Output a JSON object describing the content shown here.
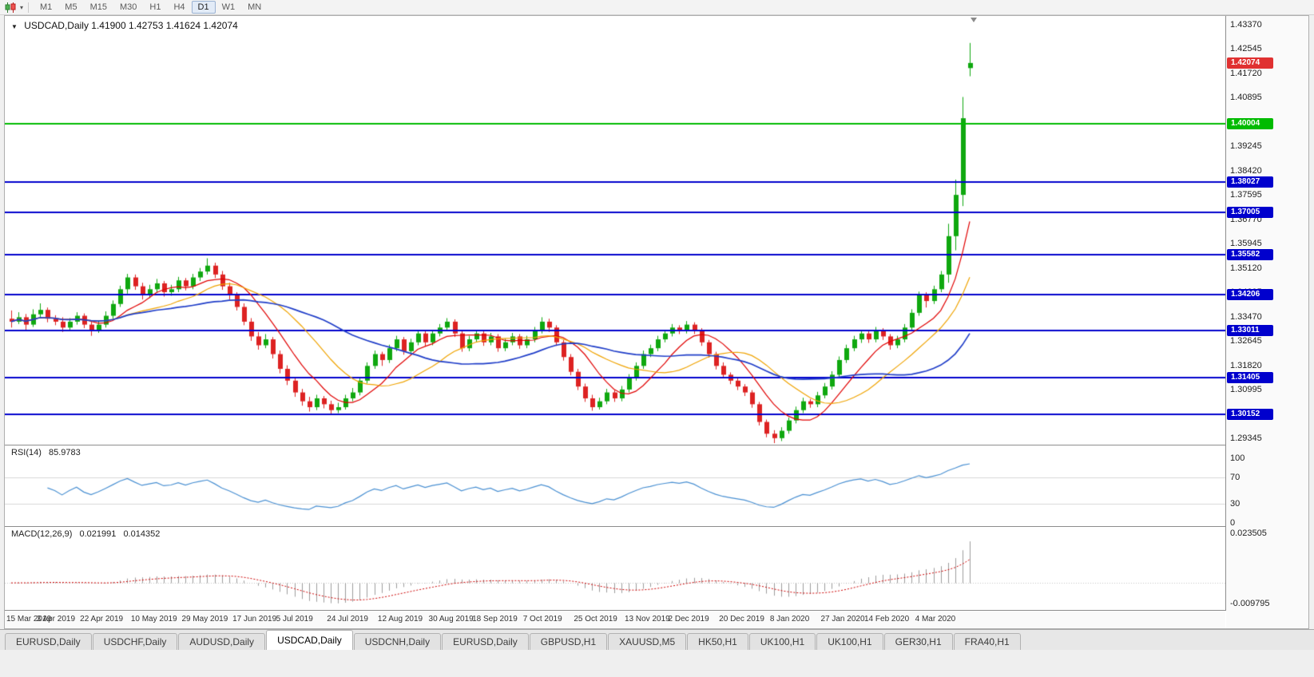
{
  "window": {
    "bg_color": "#f0f0f0"
  },
  "toolbar": {
    "chart_icon": "candlestick-chart-icon",
    "dropdown_caret": "▾",
    "timeframes": [
      {
        "label": "M1",
        "active": false
      },
      {
        "label": "M5",
        "active": false
      },
      {
        "label": "M15",
        "active": false
      },
      {
        "label": "M30",
        "active": false
      },
      {
        "label": "H1",
        "active": false
      },
      {
        "label": "H4",
        "active": false
      },
      {
        "label": "D1",
        "active": true
      },
      {
        "label": "W1",
        "active": false
      },
      {
        "label": "MN",
        "active": false
      }
    ]
  },
  "chart_data": {
    "type": "candlestick",
    "symbol": "USDCAD",
    "period": "Daily",
    "title": "USDCAD,Daily 1.41900 1.42753 1.41624 1.42074",
    "ohlc": {
      "open": "1.41900",
      "high": "1.42753",
      "low": "1.41624",
      "close": "1.42074"
    },
    "dropdown_caret": "▼",
    "bull_color": "#0fa80f",
    "bear_color": "#dd2222",
    "x_labels": [
      "15 Mar 2019",
      "3 Apr 2019",
      "22 Apr 2019",
      "10 May 2019",
      "29 May 2019",
      "17 Jun 2019",
      "5 Jul 2019",
      "24 Jul 2019",
      "12 Aug 2019",
      "30 Aug 2019",
      "18 Sep 2019",
      "7 Oct 2019",
      "25 Oct 2019",
      "13 Nov 2019",
      "2 Dec 2019",
      "20 Dec 2019",
      "8 Jan 2020",
      "27 Jan 2020",
      "14 Feb 2020",
      "4 Mar 2020"
    ],
    "y_axis": {
      "top": 1.4337,
      "bottom": 1.29345,
      "labels": [
        "1.43370",
        "1.42545",
        "1.41720",
        "1.40895",
        "1.40070",
        "1.39245",
        "1.38420",
        "1.37595",
        "1.36770",
        "1.35945",
        "1.35120",
        "1.34295",
        "1.33470",
        "1.32645",
        "1.31820",
        "1.30995",
        "1.30170",
        "1.29345"
      ]
    },
    "candles": [
      [
        1.334,
        1.3368,
        1.331,
        1.333
      ],
      [
        1.333,
        1.3362,
        1.3322,
        1.3345
      ],
      [
        1.3345,
        1.3356,
        1.3298,
        1.332
      ],
      [
        1.332,
        1.3372,
        1.3312,
        1.3355
      ],
      [
        1.3355,
        1.3392,
        1.3342,
        1.337
      ],
      [
        1.337,
        1.3378,
        1.3328,
        1.334
      ],
      [
        1.334,
        1.3352,
        1.3318,
        1.333
      ],
      [
        1.333,
        1.3345,
        1.3295,
        1.331
      ],
      [
        1.331,
        1.3342,
        1.33,
        1.333
      ],
      [
        1.333,
        1.3362,
        1.332,
        1.335
      ],
      [
        1.335,
        1.3358,
        1.3308,
        1.332
      ],
      [
        1.332,
        1.3332,
        1.3282,
        1.33
      ],
      [
        1.33,
        1.3334,
        1.3292,
        1.332
      ],
      [
        1.332,
        1.3365,
        1.331,
        1.335
      ],
      [
        1.335,
        1.3402,
        1.334,
        1.339
      ],
      [
        1.339,
        1.3452,
        1.338,
        1.344
      ],
      [
        1.344,
        1.3492,
        1.3425,
        1.348
      ],
      [
        1.348,
        1.349,
        1.3438,
        1.345
      ],
      [
        1.345,
        1.3462,
        1.3405,
        1.342
      ],
      [
        1.342,
        1.3455,
        1.341,
        1.344
      ],
      [
        1.344,
        1.3475,
        1.3428,
        1.346
      ],
      [
        1.346,
        1.3468,
        1.3415,
        1.343
      ],
      [
        1.343,
        1.3455,
        1.3418,
        1.344
      ],
      [
        1.344,
        1.3482,
        1.343,
        1.347
      ],
      [
        1.347,
        1.3478,
        1.3436,
        1.345
      ],
      [
        1.345,
        1.3492,
        1.344,
        1.348
      ],
      [
        1.348,
        1.3512,
        1.3468,
        1.35
      ],
      [
        1.35,
        1.3545,
        1.349,
        1.352
      ],
      [
        1.352,
        1.353,
        1.3478,
        1.349
      ],
      [
        1.349,
        1.3502,
        1.3438,
        1.345
      ],
      [
        1.345,
        1.3462,
        1.3405,
        1.342
      ],
      [
        1.342,
        1.343,
        1.3368,
        1.338
      ],
      [
        1.338,
        1.3392,
        1.3318,
        1.333
      ],
      [
        1.333,
        1.3342,
        1.3265,
        1.328
      ],
      [
        1.328,
        1.3295,
        1.3235,
        1.325
      ],
      [
        1.325,
        1.3288,
        1.324,
        1.327
      ],
      [
        1.327,
        1.3278,
        1.3205,
        1.322
      ],
      [
        1.322,
        1.3232,
        1.3155,
        1.317
      ],
      [
        1.317,
        1.3182,
        1.3115,
        1.313
      ],
      [
        1.313,
        1.3142,
        1.3075,
        1.309
      ],
      [
        1.309,
        1.3102,
        1.3045,
        1.306
      ],
      [
        1.306,
        1.3075,
        1.3025,
        1.304
      ],
      [
        1.304,
        1.3082,
        1.303,
        1.307
      ],
      [
        1.307,
        1.3078,
        1.3036,
        1.305
      ],
      [
        1.305,
        1.3062,
        1.3018,
        1.303
      ],
      [
        1.303,
        1.3055,
        1.302,
        1.304
      ],
      [
        1.304,
        1.3082,
        1.3032,
        1.307
      ],
      [
        1.307,
        1.3105,
        1.306,
        1.309
      ],
      [
        1.309,
        1.3142,
        1.308,
        1.313
      ],
      [
        1.313,
        1.3192,
        1.312,
        1.318
      ],
      [
        1.318,
        1.3232,
        1.317,
        1.322
      ],
      [
        1.322,
        1.3228,
        1.318,
        1.32
      ],
      [
        1.32,
        1.3252,
        1.319,
        1.324
      ],
      [
        1.324,
        1.3282,
        1.323,
        1.327
      ],
      [
        1.327,
        1.3278,
        1.3218,
        1.323
      ],
      [
        1.323,
        1.3272,
        1.322,
        1.326
      ],
      [
        1.326,
        1.3302,
        1.325,
        1.329
      ],
      [
        1.329,
        1.3298,
        1.3248,
        1.326
      ],
      [
        1.326,
        1.3302,
        1.325,
        1.329
      ],
      [
        1.329,
        1.3322,
        1.328,
        1.331
      ],
      [
        1.331,
        1.3342,
        1.33,
        1.333
      ],
      [
        1.333,
        1.3338,
        1.3278,
        1.329
      ],
      [
        1.329,
        1.3298,
        1.3228,
        1.324
      ],
      [
        1.324,
        1.3282,
        1.323,
        1.327
      ],
      [
        1.327,
        1.3302,
        1.326,
        1.329
      ],
      [
        1.329,
        1.3298,
        1.3248,
        1.326
      ],
      [
        1.326,
        1.3292,
        1.325,
        1.328
      ],
      [
        1.328,
        1.3288,
        1.3228,
        1.324
      ],
      [
        1.324,
        1.3272,
        1.323,
        1.326
      ],
      [
        1.326,
        1.3292,
        1.325,
        1.328
      ],
      [
        1.328,
        1.3288,
        1.3238,
        1.325
      ],
      [
        1.325,
        1.3282,
        1.324,
        1.327
      ],
      [
        1.327,
        1.3312,
        1.326,
        1.33
      ],
      [
        1.33,
        1.3345,
        1.329,
        1.333
      ],
      [
        1.333,
        1.334,
        1.3295,
        1.331
      ],
      [
        1.331,
        1.3318,
        1.3248,
        1.326
      ],
      [
        1.326,
        1.3268,
        1.3198,
        1.321
      ],
      [
        1.321,
        1.322,
        1.3148,
        1.316
      ],
      [
        1.316,
        1.317,
        1.3098,
        1.311
      ],
      [
        1.311,
        1.312,
        1.3058,
        1.307
      ],
      [
        1.307,
        1.3082,
        1.3028,
        1.304
      ],
      [
        1.304,
        1.3072,
        1.3032,
        1.306
      ],
      [
        1.306,
        1.3102,
        1.305,
        1.309
      ],
      [
        1.309,
        1.3098,
        1.3058,
        1.307
      ],
      [
        1.307,
        1.3112,
        1.306,
        1.31
      ],
      [
        1.31,
        1.3152,
        1.309,
        1.314
      ],
      [
        1.314,
        1.3192,
        1.313,
        1.318
      ],
      [
        1.318,
        1.3232,
        1.317,
        1.322
      ],
      [
        1.322,
        1.3252,
        1.321,
        1.324
      ],
      [
        1.324,
        1.3282,
        1.323,
        1.327
      ],
      [
        1.327,
        1.3302,
        1.326,
        1.329
      ],
      [
        1.329,
        1.3322,
        1.328,
        1.331
      ],
      [
        1.331,
        1.3318,
        1.3288,
        1.33
      ],
      [
        1.33,
        1.3332,
        1.329,
        1.332
      ],
      [
        1.332,
        1.3328,
        1.3288,
        1.33
      ],
      [
        1.33,
        1.3308,
        1.3248,
        1.326
      ],
      [
        1.326,
        1.3268,
        1.3208,
        1.322
      ],
      [
        1.322,
        1.3228,
        1.3168,
        1.318
      ],
      [
        1.318,
        1.3192,
        1.3138,
        1.315
      ],
      [
        1.315,
        1.3158,
        1.3118,
        1.313
      ],
      [
        1.313,
        1.3138,
        1.3098,
        1.311
      ],
      [
        1.311,
        1.3118,
        1.3078,
        1.309
      ],
      [
        1.309,
        1.3098,
        1.3038,
        1.305
      ],
      [
        1.305,
        1.3058,
        1.2978,
        1.299
      ],
      [
        1.299,
        1.2998,
        1.2938,
        1.295
      ],
      [
        1.295,
        1.2962,
        1.2918,
        1.2935
      ],
      [
        1.2935,
        1.2972,
        1.2925,
        1.296
      ],
      [
        1.296,
        1.3005,
        1.295,
        1.2995
      ],
      [
        1.2995,
        1.3042,
        1.2985,
        1.303
      ],
      [
        1.303,
        1.3072,
        1.302,
        1.306
      ],
      [
        1.306,
        1.3068,
        1.3038,
        1.305
      ],
      [
        1.305,
        1.3092,
        1.304,
        1.308
      ],
      [
        1.308,
        1.3122,
        1.307,
        1.311
      ],
      [
        1.311,
        1.3162,
        1.31,
        1.315
      ],
      [
        1.315,
        1.3212,
        1.314,
        1.32
      ],
      [
        1.32,
        1.3252,
        1.319,
        1.324
      ],
      [
        1.324,
        1.3282,
        1.323,
        1.327
      ],
      [
        1.327,
        1.3302,
        1.3258,
        1.329
      ],
      [
        1.329,
        1.3298,
        1.3258,
        1.327
      ],
      [
        1.327,
        1.3312,
        1.326,
        1.33
      ],
      [
        1.33,
        1.3308,
        1.3268,
        1.328
      ],
      [
        1.328,
        1.3288,
        1.3235,
        1.325
      ],
      [
        1.325,
        1.3282,
        1.324,
        1.327
      ],
      [
        1.327,
        1.3322,
        1.326,
        1.331
      ],
      [
        1.331,
        1.3372,
        1.33,
        1.336
      ],
      [
        1.336,
        1.3432,
        1.335,
        1.342
      ],
      [
        1.342,
        1.343,
        1.3378,
        1.34
      ],
      [
        1.34,
        1.3452,
        1.339,
        1.344
      ],
      [
        1.344,
        1.3502,
        1.343,
        1.349
      ],
      [
        1.349,
        1.3662,
        1.3462,
        1.362
      ],
      [
        1.362,
        1.3812,
        1.3572,
        1.376
      ],
      [
        1.376,
        1.4092,
        1.3722,
        1.402
      ],
      [
        1.419,
        1.42753,
        1.41624,
        1.42074
      ]
    ],
    "moving_averages": [
      {
        "name": "ma-fast",
        "period": 8,
        "color": "#e00000"
      },
      {
        "name": "ma-mid",
        "period": 16,
        "color": "#efa300"
      },
      {
        "name": "ma-slow",
        "period": 30,
        "color": "#1f3dc8"
      }
    ],
    "horizontal_lines": [
      {
        "price": 1.40004,
        "label": "1.40004",
        "color": "#00bb00"
      },
      {
        "price": 1.38027,
        "label": "1.38027",
        "color": "#0000cd"
      },
      {
        "price": 1.37005,
        "label": "1.37005",
        "color": "#0000cd"
      },
      {
        "price": 1.35582,
        "label": "1.35582",
        "color": "#0000cd"
      },
      {
        "price": 1.34206,
        "label": "1.34206",
        "color": "#0000cd"
      },
      {
        "price": 1.33011,
        "label": "1.33011",
        "color": "#0000cd"
      },
      {
        "price": 1.31405,
        "label": "1.31405",
        "color": "#0000cd"
      },
      {
        "price": 1.30152,
        "label": "1.30152",
        "color": "#0000cd"
      }
    ],
    "last_price_marker": {
      "price": 1.42074,
      "label": "1.42074",
      "color": "#e03131"
    },
    "indicators": {
      "rsi": {
        "name": "RSI(14)",
        "value": "85.9783",
        "color": "#4a90d2",
        "levels": [
          70,
          30
        ],
        "scale_values": [
          100,
          70,
          30,
          0
        ],
        "scale_labels": [
          "100",
          "70",
          "30",
          "0"
        ]
      },
      "macd": {
        "name": "MACD(12,26,9)",
        "main_value": "0.021991",
        "signal_value": "0.014352",
        "histogram_color": "#9c9c9c",
        "signal_color": "#cc0000",
        "scale_top": 0.023505,
        "scale_bottom": -0.009795,
        "scale_top_label": "0.023505",
        "scale_bottom_label": "-0.009795"
      }
    }
  },
  "bottom_tabs": {
    "active_index": 3,
    "tabs": [
      "EURUSD,Daily",
      "USDCHF,Daily",
      "AUDUSD,Daily",
      "USDCAD,Daily",
      "USDCNH,Daily",
      "EURUSD,Daily",
      "GBPUSD,H1",
      "XAUUSD,M5",
      "HK50,H1",
      "UK100,H1",
      "UK100,H1",
      "GER30,H1",
      "FRA40,H1"
    ]
  }
}
